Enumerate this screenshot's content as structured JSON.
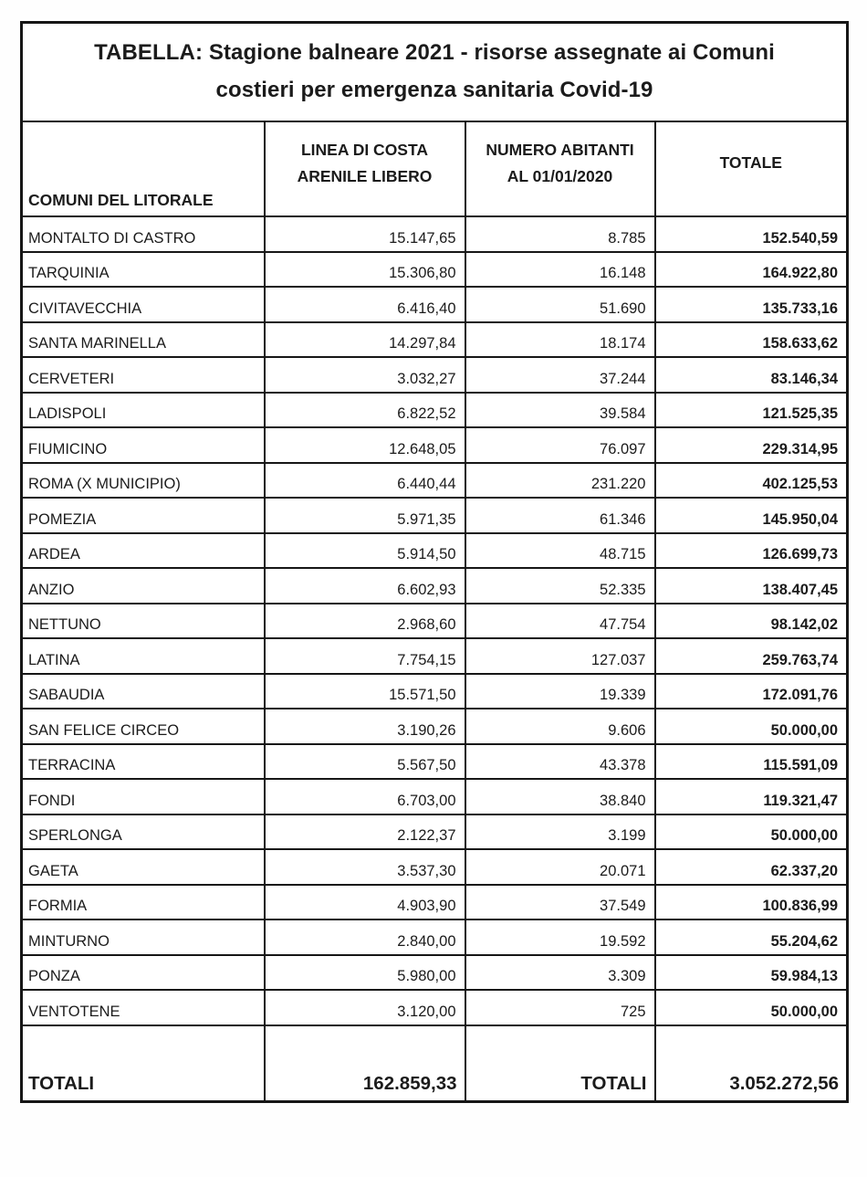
{
  "document": {
    "title": "TABELLA: Stagione balneare 2021 - risorse assegnate ai Comuni costieri per emergenza sanitaria Covid-19"
  },
  "table": {
    "column_headers": {
      "comuni": "COMUNI DEL LITORALE",
      "linea_costa": "LINEA DI COSTA\nARENILE LIBERO",
      "abitanti": "NUMERO ABITANTI\nAL 01/01/2020",
      "totale": "TOTALE"
    },
    "rows": [
      {
        "comune": "MONTALTO DI CASTRO",
        "linea_costa": "15.147,65",
        "abitanti": "8.785",
        "totale": "152.540,59"
      },
      {
        "comune": "TARQUINIA",
        "linea_costa": "15.306,80",
        "abitanti": "16.148",
        "totale": "164.922,80"
      },
      {
        "comune": "CIVITAVECCHIA",
        "linea_costa": "6.416,40",
        "abitanti": "51.690",
        "totale": "135.733,16"
      },
      {
        "comune": "SANTA MARINELLA",
        "linea_costa": "14.297,84",
        "abitanti": "18.174",
        "totale": "158.633,62"
      },
      {
        "comune": "CERVETERI",
        "linea_costa": "3.032,27",
        "abitanti": "37.244",
        "totale": "83.146,34"
      },
      {
        "comune": "LADISPOLI",
        "linea_costa": "6.822,52",
        "abitanti": "39.584",
        "totale": "121.525,35"
      },
      {
        "comune": "FIUMICINO",
        "linea_costa": "12.648,05",
        "abitanti": "76.097",
        "totale": "229.314,95"
      },
      {
        "comune": "ROMA (X MUNICIPIO)",
        "linea_costa": "6.440,44",
        "abitanti": "231.220",
        "totale": "402.125,53"
      },
      {
        "comune": "POMEZIA",
        "linea_costa": "5.971,35",
        "abitanti": "61.346",
        "totale": "145.950,04"
      },
      {
        "comune": "ARDEA",
        "linea_costa": "5.914,50",
        "abitanti": "48.715",
        "totale": "126.699,73"
      },
      {
        "comune": "ANZIO",
        "linea_costa": "6.602,93",
        "abitanti": "52.335",
        "totale": "138.407,45"
      },
      {
        "comune": "NETTUNO",
        "linea_costa": "2.968,60",
        "abitanti": "47.754",
        "totale": "98.142,02"
      },
      {
        "comune": "LATINA",
        "linea_costa": "7.754,15",
        "abitanti": "127.037",
        "totale": "259.763,74"
      },
      {
        "comune": "SABAUDIA",
        "linea_costa": "15.571,50",
        "abitanti": "19.339",
        "totale": "172.091,76"
      },
      {
        "comune": "SAN FELICE CIRCEO",
        "linea_costa": "3.190,26",
        "abitanti": "9.606",
        "totale": "50.000,00"
      },
      {
        "comune": "TERRACINA",
        "linea_costa": "5.567,50",
        "abitanti": "43.378",
        "totale": "115.591,09"
      },
      {
        "comune": "FONDI",
        "linea_costa": "6.703,00",
        "abitanti": "38.840",
        "totale": "119.321,47"
      },
      {
        "comune": "SPERLONGA",
        "linea_costa": "2.122,37",
        "abitanti": "3.199",
        "totale": "50.000,00"
      },
      {
        "comune": "GAETA",
        "linea_costa": "3.537,30",
        "abitanti": "20.071",
        "totale": "62.337,20"
      },
      {
        "comune": "FORMIA",
        "linea_costa": "4.903,90",
        "abitanti": "37.549",
        "totale": "100.836,99"
      },
      {
        "comune": "MINTURNO",
        "linea_costa": "2.840,00",
        "abitanti": "19.592",
        "totale": "55.204,62"
      },
      {
        "comune": "PONZA",
        "linea_costa": "5.980,00",
        "abitanti": "3.309",
        "totale": "59.984,13"
      },
      {
        "comune": "VENTOTENE",
        "linea_costa": "3.120,00",
        "abitanti": "725",
        "totale": "50.000,00"
      }
    ],
    "totals_row": {
      "label": "TOTALI",
      "linea_costa_total": "162.859,33",
      "abitanti_label": "TOTALI",
      "totale_total": "3.052.272,56"
    }
  }
}
